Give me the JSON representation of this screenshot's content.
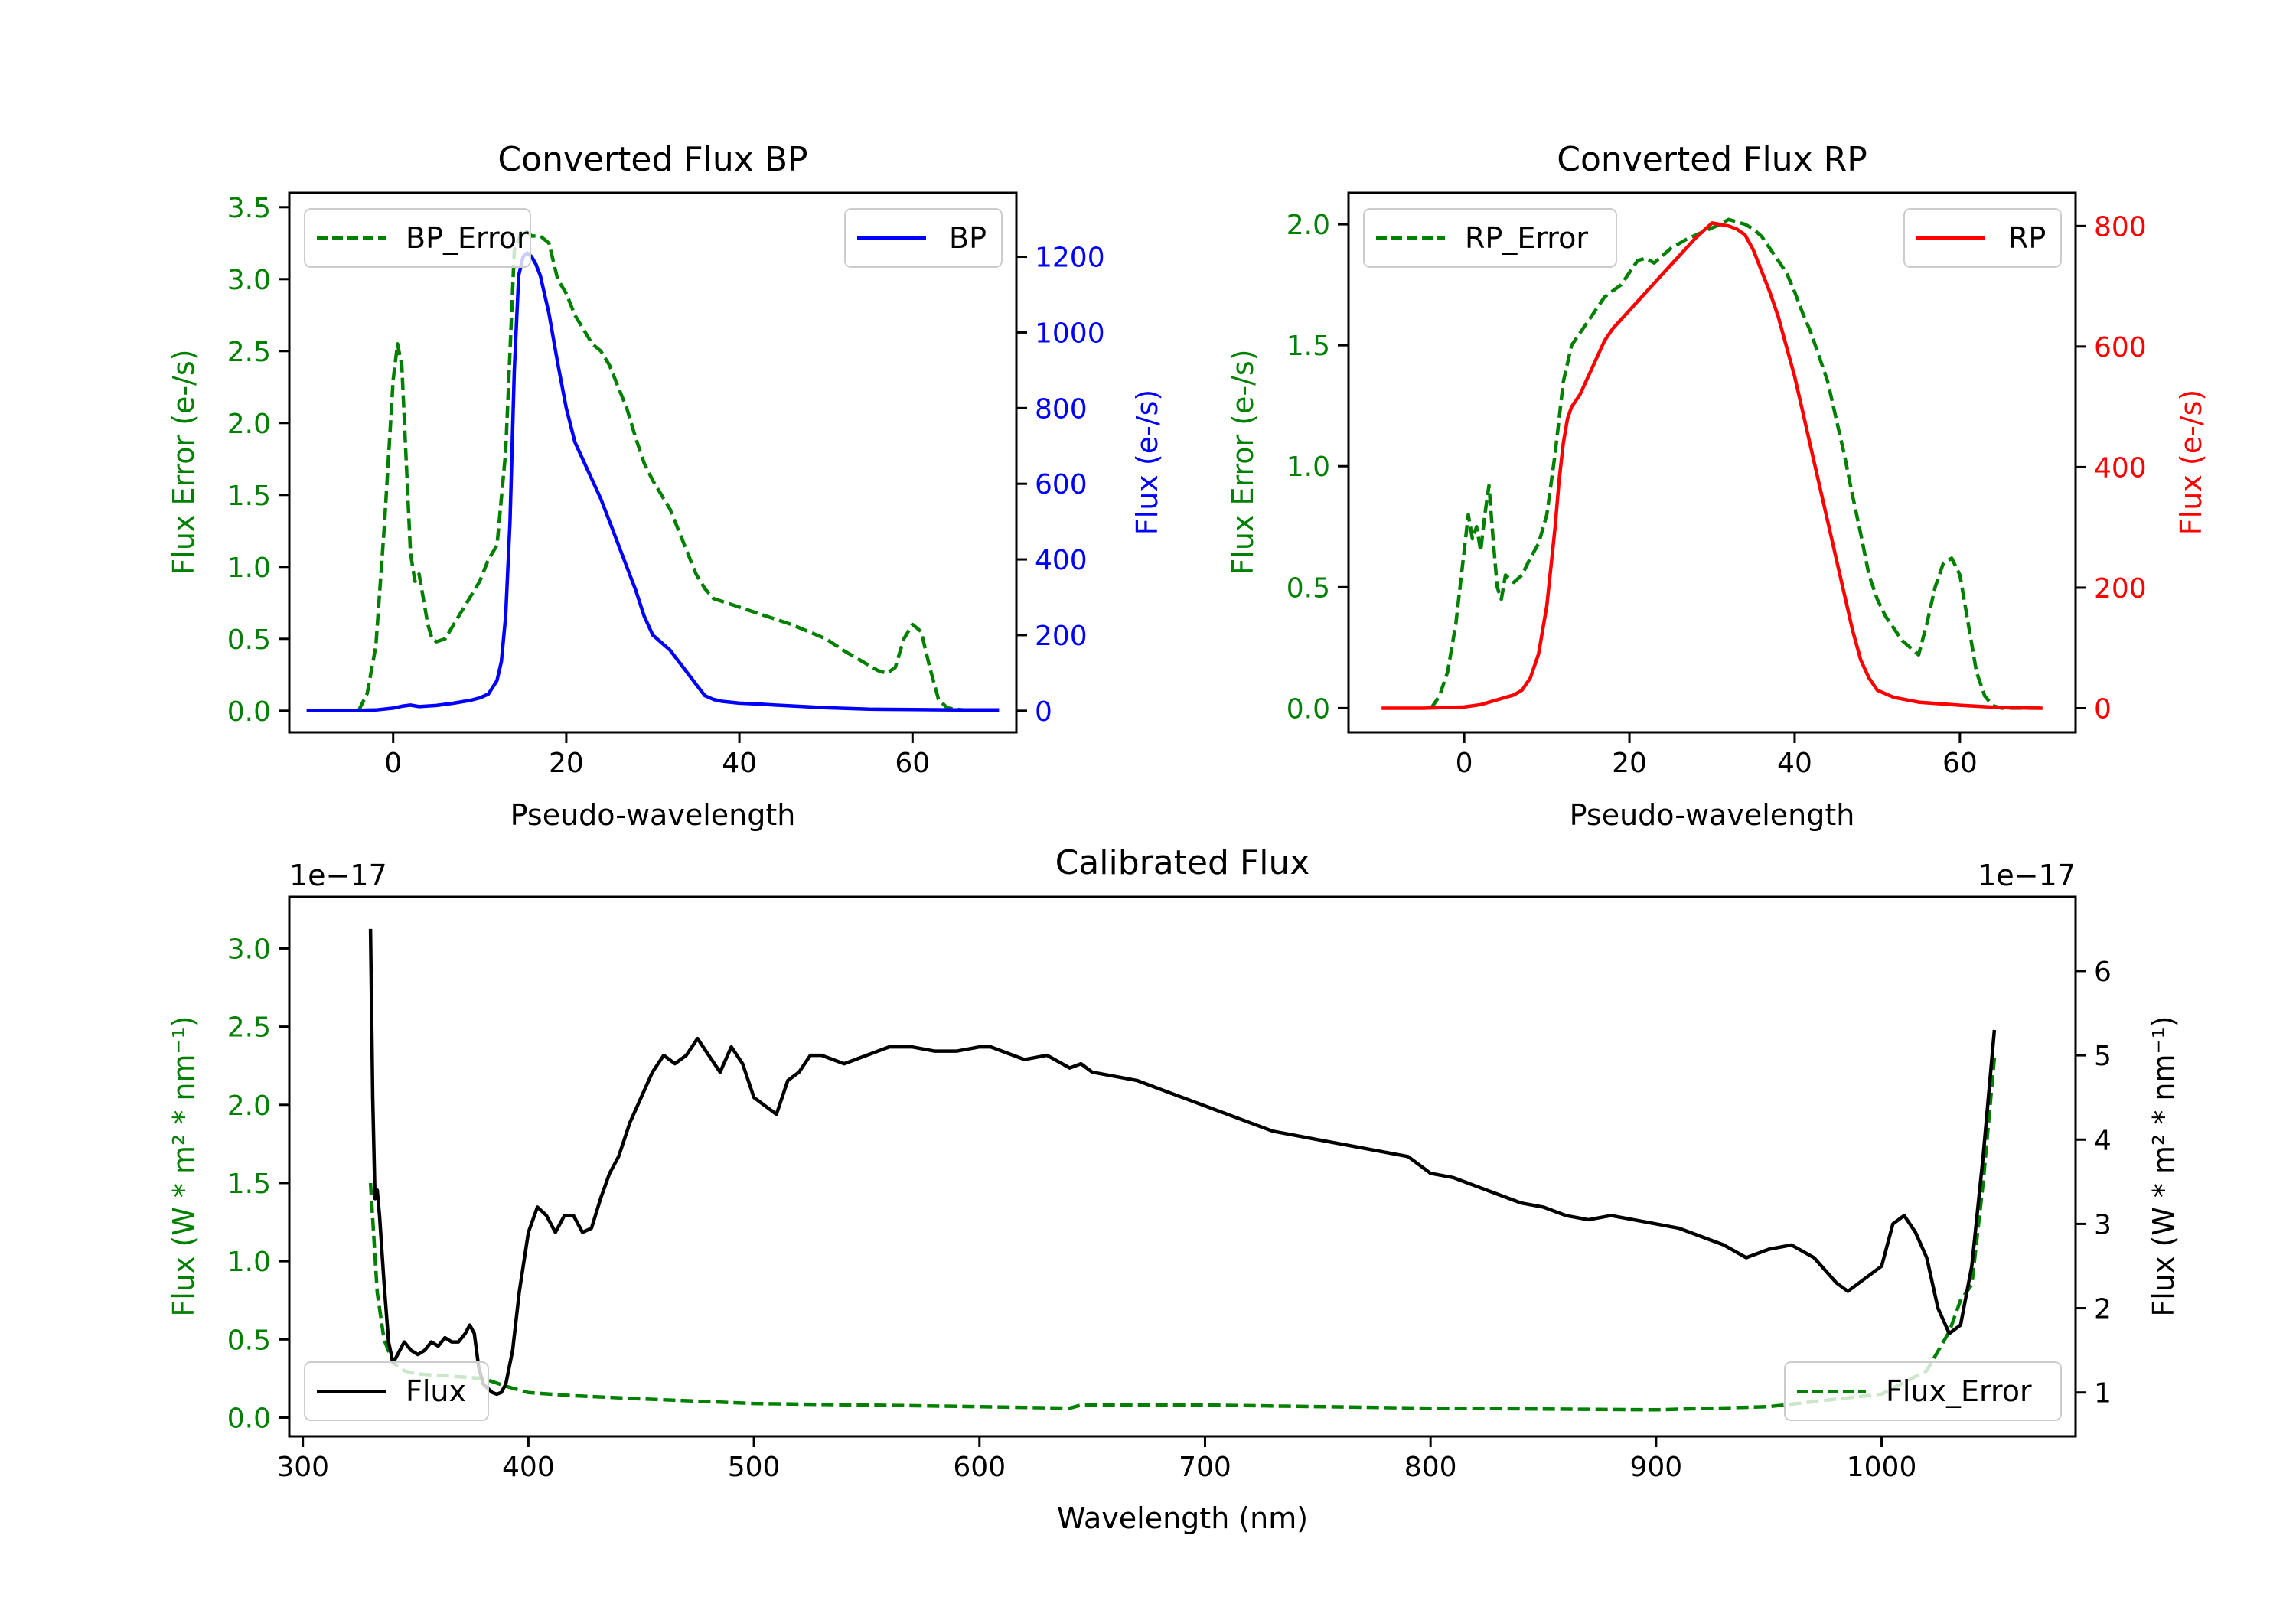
{
  "figure": {
    "background": "#ffffff"
  },
  "chart_data": [
    {
      "id": "bp",
      "type": "line",
      "title": "Converted Flux BP",
      "xlabel": "Pseudo-wavelength",
      "ylabel_left": "Flux Error (e-/s)",
      "ylabel_right": "Flux (e-/s)",
      "xlim": [
        -12,
        72
      ],
      "ylim_left": [
        -0.15,
        3.6
      ],
      "ylim_right": [
        -57,
        1369
      ],
      "xticks": [
        0,
        20,
        40,
        60
      ],
      "yticks_left": [
        "0.0",
        "0.5",
        "1.0",
        "1.5",
        "2.0",
        "2.5",
        "3.0",
        "3.5"
      ],
      "yticks_right": [
        "0",
        "200",
        "400",
        "600",
        "800",
        "1000",
        "1200"
      ],
      "left_axis_color": "#008000",
      "right_axis_color": "#0000ff",
      "series": [
        {
          "name": "BP_Error",
          "axis": "left",
          "color": "#008000",
          "dash": true,
          "legend": "BP_Error",
          "legend_loc": "upper left",
          "x": [
            -4,
            -3,
            -2,
            -1,
            0,
            0.5,
            1,
            2,
            2.5,
            3,
            4,
            4.5,
            5,
            6,
            7,
            8,
            9,
            10,
            11,
            12,
            13,
            13.5,
            14,
            15,
            16,
            17,
            18,
            19,
            20,
            21,
            22,
            23,
            24,
            25,
            26,
            27,
            28,
            29,
            30,
            31,
            32,
            33,
            34,
            35,
            36,
            37,
            38,
            40,
            42,
            44,
            46,
            48,
            50,
            52,
            54,
            56,
            57,
            58,
            59,
            60,
            61,
            62,
            63,
            64,
            65,
            67,
            69
          ],
          "y": [
            0.0,
            0.12,
            0.45,
            1.3,
            2.3,
            2.55,
            2.4,
            1.1,
            0.9,
            0.95,
            0.6,
            0.5,
            0.48,
            0.5,
            0.6,
            0.7,
            0.8,
            0.9,
            1.05,
            1.15,
            1.8,
            2.5,
            3.2,
            3.35,
            3.3,
            3.3,
            3.25,
            3.0,
            2.9,
            2.75,
            2.65,
            2.55,
            2.5,
            2.4,
            2.25,
            2.1,
            1.9,
            1.72,
            1.6,
            1.5,
            1.4,
            1.25,
            1.1,
            0.95,
            0.85,
            0.78,
            0.76,
            0.72,
            0.68,
            0.64,
            0.6,
            0.55,
            0.5,
            0.42,
            0.35,
            0.28,
            0.26,
            0.3,
            0.5,
            0.6,
            0.55,
            0.3,
            0.08,
            0.02,
            0.01,
            0.0,
            0.0
          ]
        },
        {
          "name": "BP",
          "axis": "right",
          "color": "#0000ff",
          "dash": false,
          "legend": "BP",
          "legend_loc": "upper right",
          "x": [
            -10,
            -6,
            -2,
            0,
            1,
            2,
            3,
            5,
            7,
            9,
            10,
            11,
            12,
            12.5,
            13,
            13.5,
            14,
            14.5,
            15,
            15.5,
            16,
            16.5,
            17,
            18,
            19,
            20,
            21,
            22,
            23,
            24,
            25,
            26,
            27,
            28,
            29,
            30,
            31,
            32,
            33,
            34,
            35,
            36,
            37,
            38,
            40,
            42,
            45,
            50,
            55,
            60,
            65,
            70
          ],
          "y": [
            0,
            0,
            2,
            7,
            12,
            15,
            11,
            14,
            20,
            28,
            34,
            44,
            80,
            130,
            250,
            500,
            900,
            1150,
            1200,
            1210,
            1200,
            1180,
            1150,
            1050,
            920,
            800,
            710,
            660,
            610,
            560,
            500,
            440,
            380,
            320,
            250,
            200,
            180,
            160,
            130,
            100,
            70,
            40,
            30,
            25,
            20,
            18,
            14,
            8,
            4,
            3,
            2,
            2
          ]
        }
      ]
    },
    {
      "id": "rp",
      "type": "line",
      "title": "Converted Flux RP",
      "xlabel": "Pseudo-wavelength",
      "ylabel_left": "Flux Error (e-/s)",
      "ylabel_right": "Flux (e-/s)",
      "xlim": [
        -14,
        74
      ],
      "ylim_left": [
        -0.1,
        2.13
      ],
      "ylim_right": [
        -40,
        855
      ],
      "xticks": [
        0,
        20,
        40,
        60
      ],
      "yticks_left": [
        "0.0",
        "0.5",
        "1.0",
        "1.5",
        "2.0"
      ],
      "yticks_right": [
        "0",
        "200",
        "400",
        "600",
        "800"
      ],
      "left_axis_color": "#008000",
      "right_axis_color": "#ff0000",
      "series": [
        {
          "name": "RP_Error",
          "axis": "left",
          "color": "#008000",
          "dash": true,
          "legend": "RP_Error",
          "legend_loc": "upper left",
          "x": [
            -4,
            -3,
            -2,
            -1,
            0,
            0.5,
            1,
            1.5,
            2,
            2.5,
            3,
            3.5,
            4,
            4.5,
            5,
            6,
            7,
            8,
            9,
            10,
            11,
            12,
            13,
            14,
            15,
            17,
            19,
            20,
            21,
            22,
            23,
            24,
            25,
            27,
            29,
            31,
            32,
            33,
            34,
            35,
            36,
            37,
            38,
            39,
            40,
            41,
            42,
            43,
            44,
            45,
            46,
            47,
            48,
            49,
            50,
            51,
            52,
            53,
            54,
            55,
            56,
            57,
            58,
            59,
            60,
            61,
            62,
            63,
            64,
            65,
            70
          ],
          "y": [
            0.0,
            0.05,
            0.15,
            0.35,
            0.65,
            0.8,
            0.7,
            0.75,
            0.65,
            0.8,
            0.92,
            0.7,
            0.5,
            0.45,
            0.55,
            0.52,
            0.55,
            0.62,
            0.68,
            0.8,
            1.05,
            1.35,
            1.5,
            1.55,
            1.6,
            1.7,
            1.75,
            1.8,
            1.85,
            1.86,
            1.84,
            1.87,
            1.9,
            1.94,
            1.97,
            2.0,
            2.02,
            2.01,
            2.0,
            1.98,
            1.95,
            1.9,
            1.85,
            1.8,
            1.72,
            1.63,
            1.55,
            1.45,
            1.35,
            1.2,
            1.05,
            0.88,
            0.72,
            0.55,
            0.45,
            0.38,
            0.33,
            0.28,
            0.25,
            0.22,
            0.35,
            0.5,
            0.6,
            0.62,
            0.55,
            0.35,
            0.15,
            0.05,
            0.01,
            0.0,
            0.0
          ]
        },
        {
          "name": "RP",
          "axis": "right",
          "color": "#ff0000",
          "dash": false,
          "legend": "RP",
          "legend_loc": "upper right",
          "x": [
            -10,
            -5,
            0,
            2,
            4,
            6,
            7,
            8,
            9,
            10,
            11,
            11.5,
            12,
            12.5,
            13,
            14,
            15,
            16,
            17,
            18,
            20,
            22,
            24,
            26,
            28,
            30,
            32,
            33,
            34,
            35,
            36,
            37,
            38,
            39,
            40,
            41,
            42,
            43,
            44,
            45,
            46,
            47,
            48,
            49,
            50,
            52,
            55,
            60,
            65,
            70
          ],
          "y": [
            0,
            0,
            2,
            6,
            14,
            22,
            30,
            50,
            90,
            170,
            300,
            380,
            440,
            480,
            500,
            520,
            550,
            580,
            610,
            630,
            660,
            690,
            720,
            750,
            780,
            805,
            800,
            795,
            785,
            760,
            725,
            690,
            650,
            600,
            550,
            490,
            430,
            370,
            310,
            250,
            190,
            130,
            80,
            50,
            30,
            18,
            10,
            5,
            1,
            0
          ]
        }
      ]
    },
    {
      "id": "cal",
      "type": "line",
      "title": "Calibrated Flux",
      "xlabel": "Wavelength (nm)",
      "ylabel_left": "Flux (W * m² * nm⁻¹)",
      "ylabel_right": "Flux (W * m² * nm⁻¹)",
      "offset_left": "1e−17",
      "offset_right": "1e−17",
      "xlim": [
        294,
        1086
      ],
      "ylim_left": [
        -0.12,
        3.33
      ],
      "ylim_right": [
        0.48,
        6.88
      ],
      "xticks": [
        300,
        400,
        500,
        600,
        700,
        800,
        900,
        1000
      ],
      "yticks_left": [
        "0.0",
        "0.5",
        "1.0",
        "1.5",
        "2.0",
        "2.5",
        "3.0"
      ],
      "yticks_right": [
        "1",
        "2",
        "3",
        "4",
        "5",
        "6"
      ],
      "left_axis_color": "#008000",
      "right_axis_color": "#000000",
      "series": [
        {
          "name": "Flux_Error",
          "axis": "left",
          "color": "#008000",
          "dash": true,
          "legend": "Flux_Error",
          "legend_loc": "lower right",
          "x": [
            330,
            333,
            336,
            340,
            345,
            350,
            360,
            370,
            380,
            390,
            400,
            420,
            450,
            500,
            550,
            600,
            640,
            645,
            700,
            800,
            900,
            950,
            1000,
            1020,
            1030,
            1035,
            1040,
            1045,
            1050
          ],
          "y": [
            1.5,
            0.8,
            0.5,
            0.35,
            0.3,
            0.28,
            0.27,
            0.26,
            0.25,
            0.2,
            0.16,
            0.14,
            0.12,
            0.09,
            0.08,
            0.07,
            0.06,
            0.08,
            0.08,
            0.06,
            0.05,
            0.07,
            0.15,
            0.3,
            0.55,
            0.75,
            0.85,
            1.5,
            2.3
          ]
        },
        {
          "name": "Flux",
          "axis": "right",
          "color": "#000000",
          "dash": false,
          "legend": "Flux",
          "legend_loc": "lower left",
          "x": [
            330,
            331,
            332,
            333,
            334,
            336,
            338,
            340,
            342,
            345,
            348,
            351,
            354,
            357,
            360,
            363,
            366,
            369,
            372,
            374,
            376,
            378,
            380,
            382,
            384,
            386,
            388,
            390,
            393,
            396,
            400,
            404,
            408,
            412,
            416,
            420,
            424,
            428,
            432,
            436,
            440,
            445,
            450,
            455,
            460,
            465,
            470,
            475,
            480,
            485,
            490,
            495,
            500,
            505,
            510,
            515,
            520,
            525,
            530,
            540,
            550,
            560,
            570,
            580,
            590,
            600,
            605,
            610,
            620,
            630,
            640,
            645,
            650,
            660,
            670,
            680,
            690,
            700,
            710,
            720,
            730,
            740,
            750,
            760,
            770,
            780,
            790,
            800,
            810,
            820,
            830,
            840,
            850,
            860,
            870,
            880,
            890,
            900,
            910,
            920,
            930,
            940,
            950,
            960,
            970,
            980,
            985,
            990,
            1000,
            1005,
            1010,
            1015,
            1020,
            1025,
            1030,
            1035,
            1040,
            1045,
            1050
          ],
          "y": [
            6.5,
            4.5,
            3.3,
            3.4,
            3.1,
            2.3,
            1.6,
            1.35,
            1.45,
            1.6,
            1.5,
            1.45,
            1.5,
            1.6,
            1.55,
            1.65,
            1.6,
            1.6,
            1.7,
            1.8,
            1.7,
            1.3,
            1.1,
            1.05,
            1.0,
            0.98,
            1.0,
            1.1,
            1.5,
            2.2,
            2.9,
            3.2,
            3.1,
            2.9,
            3.1,
            3.1,
            2.9,
            2.95,
            3.3,
            3.6,
            3.8,
            4.2,
            4.5,
            4.8,
            5.0,
            4.9,
            5.0,
            5.2,
            5.0,
            4.8,
            5.1,
            4.9,
            4.5,
            4.4,
            4.3,
            4.7,
            4.8,
            5.0,
            5.0,
            4.9,
            5.0,
            5.1,
            5.1,
            5.05,
            5.05,
            5.1,
            5.1,
            5.05,
            4.95,
            5.0,
            4.85,
            4.9,
            4.8,
            4.75,
            4.7,
            4.6,
            4.5,
            4.4,
            4.3,
            4.2,
            4.1,
            4.05,
            4.0,
            3.95,
            3.9,
            3.85,
            3.8,
            3.6,
            3.55,
            3.45,
            3.35,
            3.25,
            3.2,
            3.1,
            3.05,
            3.1,
            3.05,
            3.0,
            2.95,
            2.85,
            2.75,
            2.6,
            2.7,
            2.75,
            2.6,
            2.3,
            2.2,
            2.3,
            2.5,
            3.0,
            3.1,
            2.9,
            2.6,
            2.0,
            1.7,
            1.8,
            2.5,
            3.8,
            5.3
          ]
        }
      ]
    }
  ]
}
